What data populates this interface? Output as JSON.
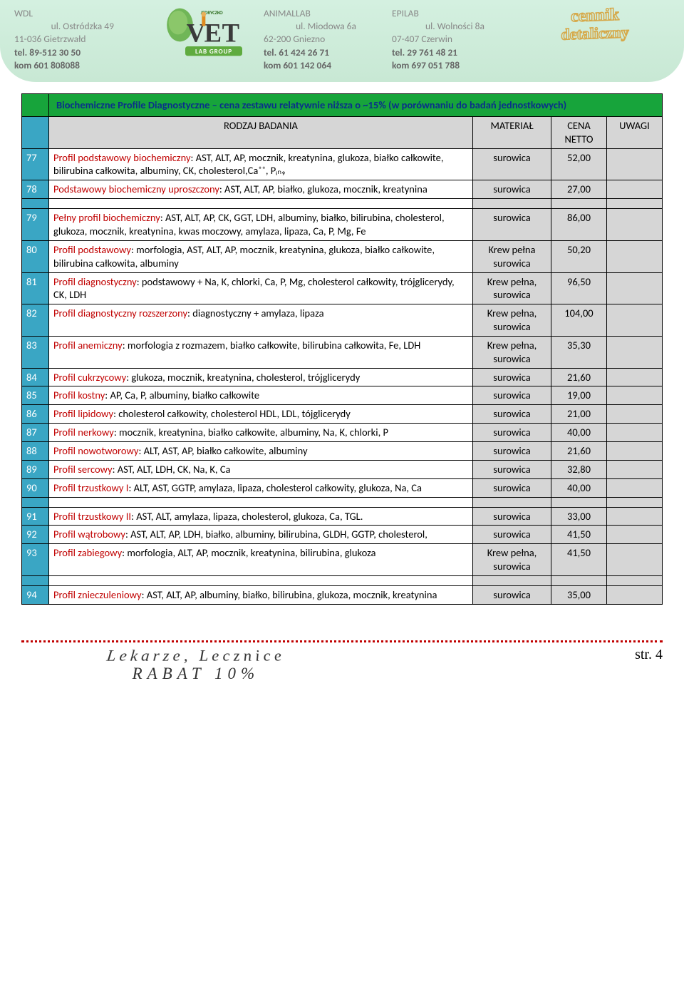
{
  "header": {
    "labs": [
      {
        "name": "WDL",
        "addr1": "ul. Ostródzka 49",
        "addr2": "11-036 Gietrzwałd",
        "tel": "tel. 89-512 30 50",
        "kom": "kom 601 808088"
      },
      {
        "name": "ANIMALLAB",
        "addr1": "ul. Miodowa 6a",
        "addr2": "62-200 Gniezno",
        "tel": "tel. 61 424 26 71",
        "kom": "kom 601 142 064"
      },
      {
        "name": "EPILAB",
        "addr1": "ul. Wolności 8a",
        "addr2": "07-407 Czerwin",
        "tel": "tel. 29 761 48 21",
        "kom": "kom 697 051 788"
      }
    ],
    "cennik_line1": "cennik",
    "cennik_line2": "detaliczny",
    "logo": {
      "top_text": "JĘDRYCZKO",
      "main": "VET",
      "sub": "LAB GROUP",
      "accent": "#5fab3f",
      "dark": "#3a3a3a",
      "orange": "#e08a1e"
    }
  },
  "table": {
    "section_title": "Biochemiczne Profile Diagnostyczne – cena zestawu relatywnie niższa o ~15% (w porównaniu do badań jednostkowych)",
    "columns": {
      "rodzaj": "RODZAJ BADANIA",
      "material": "MATERIAŁ",
      "cena": "CENA NETTO",
      "uwagi": "UWAGI"
    },
    "rows": [
      {
        "n": "77",
        "lead": "Profil podstawowy biochemiczny",
        "rest": ": AST, ALT, AP, mocznik, kreatynina, glukoza, białko całkowite, bilirubina całkowita, albuminy, CK, cholesterol,Ca⁺⁺, Pᵢₙ₉",
        "mat": "surowica",
        "price": "52,00"
      },
      {
        "n": "78",
        "lead": "Podstawowy biochemiczny uproszczony",
        "rest": ": AST, ALT, AP, białko, glukoza, mocznik, kreatynina",
        "mat": "surowica",
        "price": "27,00"
      },
      {
        "n": "79",
        "lead": "Pełny profil biochemiczny",
        "rest": ": AST, ALT, AP, CK, GGT, LDH, albuminy, białko, bilirubina, cholesterol, glukoza, mocznik, kreatynina, kwas moczowy, amylaza, lipaza, Ca, P, Mg, Fe",
        "mat": "surowica",
        "price": "86,00"
      },
      {
        "n": "80",
        "lead": "Profil podstawowy",
        "rest": ": morfologia, AST, ALT, AP, mocznik, kreatynina, glukoza, białko całkowite, bilirubina całkowita, albuminy",
        "mat": "Krew pełna surowica",
        "price": "50,20"
      },
      {
        "n": "81",
        "lead": "Profil diagnostyczny",
        "rest": ": podstawowy + Na, K, chlorki, Ca, P, Mg, cholesterol całkowity, trójglicerydy, CK, LDH",
        "mat": "Krew pełna, surowica",
        "price": "96,50"
      },
      {
        "n": "82",
        "lead": "Profil diagnostyczny rozszerzony",
        "rest": ": diagnostyczny + amylaza, lipaza",
        "mat": "Krew pełna, surowica",
        "price": "104,00"
      },
      {
        "n": "83",
        "lead": "Profil anemiczny",
        "rest": ": morfologia z rozmazem, białko całkowite, bilirubina całkowita, Fe, LDH",
        "mat": "Krew pełna, surowica",
        "price": "35,30"
      },
      {
        "n": "84",
        "lead": "Profil cukrzycowy",
        "rest": ": glukoza, mocznik, kreatynina, cholesterol, trójglicerydy",
        "mat": "surowica",
        "price": "21,60"
      },
      {
        "n": "85",
        "lead": "Profil kostny",
        "rest": ": AP, Ca, P, albuminy, białko całkowite",
        "mat": "surowica",
        "price": "19,00"
      },
      {
        "n": "86",
        "lead": "Profil lipidowy",
        "rest": ": cholesterol całkowity, cholesterol HDL, LDL, tójglicerydy",
        "mat": "surowica",
        "price": "21,00"
      },
      {
        "n": "87",
        "lead": "Profil nerkowy",
        "rest": ": mocznik, kreatynina, białko całkowite, albuminy, Na, K, chlorki, P",
        "mat": "surowica",
        "price": "40,00"
      },
      {
        "n": "88",
        "lead": "Profil nowotworowy",
        "rest": ": ALT, AST, AP, białko całkowite, albuminy",
        "mat": "surowica",
        "price": "21,60"
      },
      {
        "n": "89",
        "lead": "Profil sercowy",
        "rest": ": AST, ALT, LDH, CK, Na, K, Ca",
        "mat": "surowica",
        "price": "32,80"
      },
      {
        "n": "90",
        "lead": "Profil trzustkowy I",
        "rest": ": ALT, AST, GGTP, amylaza, lipaza, cholesterol całkowity, glukoza, Na, Ca",
        "mat": "surowica",
        "price": "40,00"
      },
      {
        "n": "91",
        "lead": "Profil trzustkowy II",
        "rest": ": AST, ALT, amylaza, lipaza, cholesterol, glukoza, Ca, TGL.",
        "mat": "surowica",
        "price": "33,00"
      },
      {
        "n": "92",
        "lead": "Profil wątrobowy",
        "rest": ": AST, ALT, AP, LDH, białko, albuminy, bilirubina, GLDH, GGTP, cholesterol,",
        "mat": "surowica",
        "price": "41,50"
      },
      {
        "n": "93",
        "lead": "Profil zabiegowy",
        "rest": ": morfologia, ALT, AP, mocznik, kreatynina, bilirubina, glukoza",
        "mat": "Krew pełna, surowica",
        "price": "41,50"
      },
      {
        "n": "94",
        "lead": "Profil znieczuleniowy",
        "rest": ": AST, ALT, AP, albuminy, białko, bilirubina, glukoza, mocznik, kreatynina",
        "mat": "surowica",
        "price": "35,00"
      }
    ],
    "spacer_after": [
      78,
      90,
      93
    ],
    "colors": {
      "section_bg": "#17a43b",
      "section_text": "#0a2f8a",
      "num_bg": "#3aa6c4",
      "gray_bg": "#d6d6d6",
      "lead_text": "#c00000",
      "border": "#000000"
    }
  },
  "footer": {
    "art_line1": "Lekarze, Lecznice",
    "art_line2": "RABAT    10%",
    "page": "str. 4",
    "dot_color": "#c00000"
  }
}
